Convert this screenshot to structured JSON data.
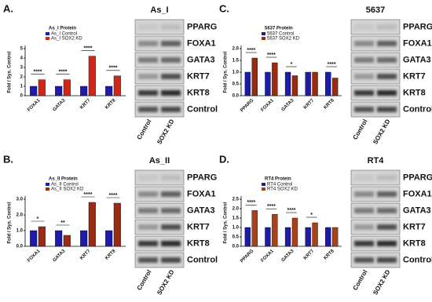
{
  "chart_data": [
    {
      "type": "bar",
      "panel_label": "A.",
      "title": "As_I Protein",
      "y_label": "Fold / Sys. Control",
      "categories": [
        "FOXA1",
        "GATA3",
        "KRT7",
        "KRT8"
      ],
      "series": [
        {
          "name": "As_I Control",
          "color": "#1c1ca8",
          "values": [
            1,
            1,
            1,
            1
          ]
        },
        {
          "name": "As_I SOX2 KD",
          "color": "#d02818",
          "values": [
            1.7,
            1.7,
            4.2,
            2.1
          ]
        }
      ],
      "significance": [
        "****",
        "****",
        "****",
        "****"
      ],
      "ylim": [
        0,
        5
      ],
      "yticks": [
        0,
        1,
        2,
        3,
        4,
        5
      ],
      "blot": {
        "title": "As_I",
        "rows": [
          "PPARG",
          "FOXA1",
          "GATA3",
          "KRT7",
          "KRT8",
          "Control"
        ],
        "lanes": [
          "Control",
          "SOX2 KD"
        ]
      }
    },
    {
      "type": "bar",
      "panel_label": "C.",
      "title": "5637 Protein",
      "y_label": "Fold / Sys. Control",
      "categories": [
        "PPARG",
        "FOXA1",
        "GATA3",
        "KRT7",
        "KRT8"
      ],
      "series": [
        {
          "name": "5637 Control",
          "color": "#1c1ca8",
          "values": [
            1,
            1,
            1,
            1,
            1
          ]
        },
        {
          "name": "5637 SOX2 KD",
          "color": "#9a2a10",
          "values": [
            1.6,
            1.4,
            0.85,
            1.0,
            0.75
          ]
        }
      ],
      "significance": [
        "****",
        "****",
        "*",
        null,
        "****"
      ],
      "ylim": [
        0,
        2
      ],
      "yticks": [
        {
          "value": 0,
          "label": "0.0"
        },
        {
          "value": 0.5,
          "label": "0.5"
        },
        {
          "value": 1,
          "label": "1.0"
        },
        {
          "value": 1.5,
          "label": "1.5"
        },
        {
          "value": 2,
          "label": "2.0"
        }
      ],
      "blot": {
        "title": "5637",
        "rows": [
          "PPARG",
          "FOXA1",
          "GATA3",
          "KRT7",
          "KRT8",
          "Control"
        ],
        "lanes": [
          "Control",
          "SOX2 KD"
        ]
      }
    },
    {
      "type": "bar",
      "panel_label": "B.",
      "title": "As_II Protein",
      "y_label": "Fold / Sys. Control",
      "categories": [
        "FOXA1",
        "GATA3",
        "KRT7",
        "KRT8"
      ],
      "series": [
        {
          "name": "As_II Control",
          "color": "#1c1ca8",
          "values": [
            1,
            1,
            1,
            1
          ]
        },
        {
          "name": "As_II SOX2 KD",
          "color": "#9a2a10",
          "values": [
            1.25,
            0.7,
            2.8,
            2.75
          ]
        }
      ],
      "significance": [
        "*",
        "**",
        "****",
        "****"
      ],
      "ylim": [
        0,
        3
      ],
      "yticks": [
        {
          "value": 0,
          "label": "0.0"
        },
        {
          "value": 1,
          "label": "1.0"
        },
        {
          "value": 2,
          "label": "2.0"
        },
        {
          "value": 3,
          "label": "3.0"
        }
      ],
      "blot": {
        "title": "As_II",
        "rows": [
          "PPARG",
          "FOXA1",
          "GATA3",
          "KRT7",
          "KRT8",
          "Control"
        ],
        "lanes": [
          "Control",
          "SOX2 KD"
        ]
      }
    },
    {
      "type": "bar",
      "panel_label": "D.",
      "title": "RT4 Protein",
      "y_label": "Fold / Sys. Control",
      "categories": [
        "PPARG",
        "FOXA1",
        "GATA3",
        "KRT7",
        "KRT8"
      ],
      "series": [
        {
          "name": "RT4 Control",
          "color": "#1c1ca8",
          "values": [
            1,
            1,
            1,
            1,
            1
          ]
        },
        {
          "name": "RT4 SOX2 KD",
          "color": "#a8401a",
          "values": [
            1.9,
            1.7,
            1.5,
            1.25,
            1.0
          ]
        }
      ],
      "significance": [
        "****",
        "****",
        "****",
        "*",
        null
      ],
      "ylim": [
        0,
        2.5
      ],
      "yticks": [
        {
          "value": 0,
          "label": "0.0"
        },
        {
          "value": 0.5,
          "label": "0.5"
        },
        {
          "value": 1,
          "label": "1.0"
        },
        {
          "value": 1.5,
          "label": "1.5"
        },
        {
          "value": 2,
          "label": "2.0"
        },
        {
          "value": 2.5,
          "label": "2.5"
        }
      ],
      "blot": {
        "title": "RT4",
        "rows": [
          "PPARG",
          "FOXA1",
          "GATA3",
          "KRT7",
          "KRT8",
          "Control"
        ],
        "lanes": [
          "Control",
          "SOX2 KD"
        ]
      }
    }
  ]
}
